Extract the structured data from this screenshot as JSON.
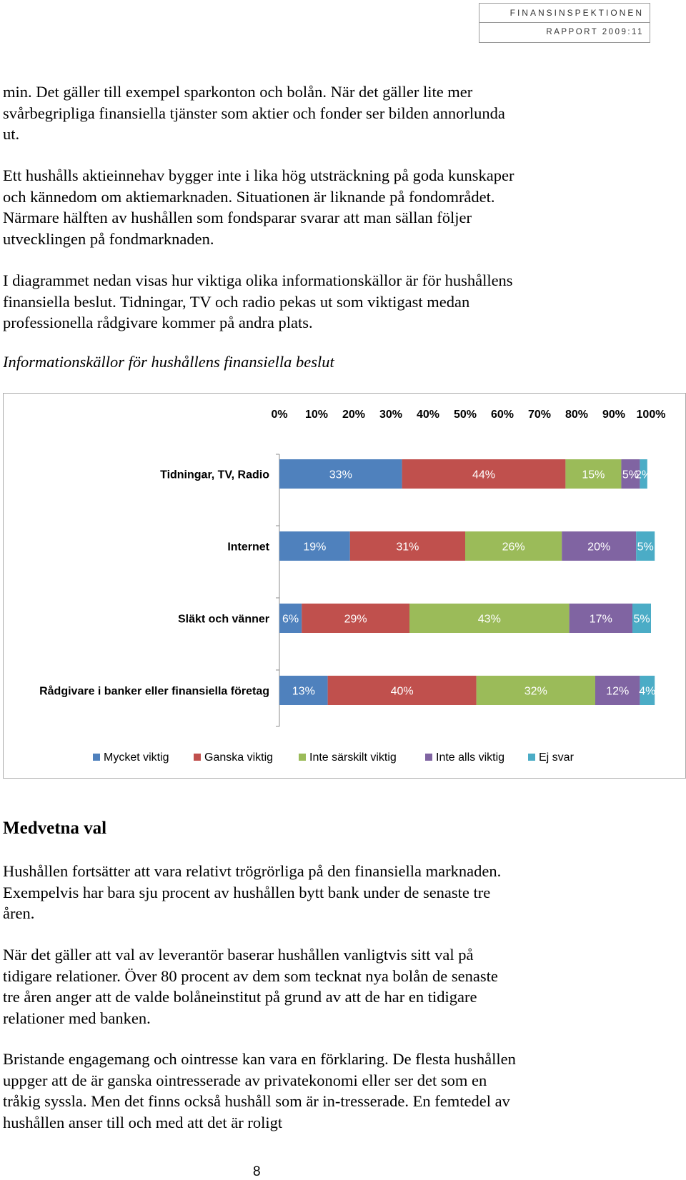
{
  "header": {
    "org": "FINANSINSPEKTIONEN",
    "report": "RAPPORT 2009:11"
  },
  "paragraphs": [
    "min. Det gäller till exempel sparkonton och bolån. När det gäller lite mer svårbegripliga finansiella tjänster som aktier och fonder ser bilden annorlunda ut.",
    "Ett hushålls aktieinnehav bygger inte i lika hög utsträckning på goda kunskaper och kännedom om aktiemarknaden. Situationen är liknande på fondområdet. Närmare hälften av hushållen som fondsparar svarar att man sällan följer utvecklingen på fondmarknaden.",
    "I diagrammet nedan visas hur viktiga olika informationskällor är för hushållens finansiella beslut. Tidningar, TV och radio pekas ut som viktigast medan professionella rådgivare kommer på andra plats."
  ],
  "figure_caption": "Informationskällor för hushållens finansiella beslut",
  "chart_data": {
    "type": "bar",
    "orientation": "horizontal",
    "stacked": true,
    "x_ticks": [
      "0%",
      "10%",
      "20%",
      "30%",
      "40%",
      "50%",
      "60%",
      "70%",
      "80%",
      "90%",
      "100%"
    ],
    "xlim": [
      0,
      100
    ],
    "x_axis_position": "top",
    "legend_position": "bottom",
    "grid": false,
    "categories": [
      "Tidningar, TV, Radio",
      "Internet",
      "Släkt och vänner",
      "Rådgivare i banker eller finansiella företag"
    ],
    "series": [
      {
        "name": "Mycket viktig",
        "color": "#4f81bd",
        "values": [
          33,
          19,
          6,
          13
        ],
        "labels": [
          "33%",
          "19%",
          "6%",
          "13%"
        ]
      },
      {
        "name": "Ganska viktig",
        "color": "#c0504d",
        "values": [
          44,
          31,
          29,
          40
        ],
        "labels": [
          "44%",
          "31%",
          "29%",
          "40%"
        ]
      },
      {
        "name": "Inte särskilt viktig",
        "color": "#9bbb59",
        "values": [
          15,
          26,
          43,
          32
        ],
        "labels": [
          "15%",
          "26%",
          "43%",
          "32%"
        ]
      },
      {
        "name": "Inte alls viktig",
        "color": "#8064a2",
        "values": [
          5,
          20,
          17,
          12
        ],
        "labels": [
          "5%",
          "20%",
          "17%",
          "12%"
        ]
      },
      {
        "name": "Ej svar",
        "color": "#4bacc6",
        "values": [
          2,
          5,
          5,
          4
        ],
        "labels": [
          "2%",
          "5%",
          "5%",
          "4%"
        ]
      }
    ]
  },
  "section_heading": "Medvetna val",
  "body_paragraphs": [
    "Hushållen fortsätter att vara relativt trögrörliga på den finansiella marknaden. Exempelvis har bara sju procent av hushållen bytt bank under de senaste tre åren.",
    "När det gäller att val av leverantör baserar hushållen vanligtvis sitt val på tidigare relationer. Över 80 procent av dem som tecknat nya bolån de senaste tre åren anger att de valde bolåneinstitut på grund av att de har en tidigare relationer med banken.",
    "Bristande engagemang och ointresse kan vara en förklaring. De flesta hushållen uppger att de är ganska ointresserade av privatekonomi eller ser det som en tråkig syssla. Men det finns också hushåll som är in-tresserade. En femtedel av hushållen anser till och med att det är roligt"
  ],
  "page_number": "8"
}
